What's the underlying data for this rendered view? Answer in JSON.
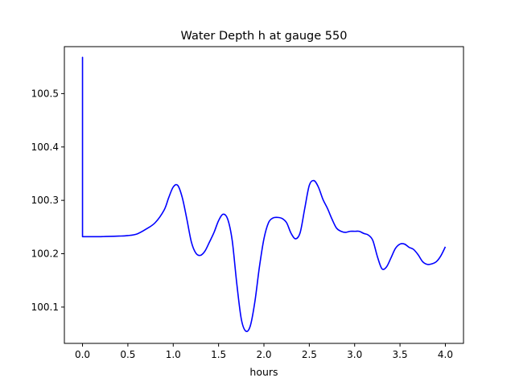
{
  "chart_data": {
    "type": "line",
    "title": "Water Depth h at gauge 550",
    "xlabel": "hours",
    "ylabel": "",
    "xlim": [
      -0.2,
      4.2
    ],
    "ylim": [
      100.032,
      100.588
    ],
    "xticks": [
      0.0,
      0.5,
      1.0,
      1.5,
      2.0,
      2.5,
      3.0,
      3.5,
      4.0
    ],
    "xtick_labels": [
      "0.0",
      "0.5",
      "1.0",
      "1.5",
      "2.0",
      "2.5",
      "3.0",
      "3.5",
      "4.0"
    ],
    "yticks": [
      100.1,
      100.2,
      100.3,
      100.4,
      100.5
    ],
    "ytick_labels": [
      "100.1",
      "100.2",
      "100.3",
      "100.4",
      "100.5"
    ],
    "grid": false,
    "legend": "none",
    "series": [
      {
        "color": "#0000ff",
        "x": [
          0.0,
          0.0,
          0.0,
          0.2,
          0.4,
          0.5,
          0.6,
          0.7,
          0.8,
          0.9,
          0.95,
          1.0,
          1.05,
          1.1,
          1.15,
          1.2,
          1.25,
          1.3,
          1.35,
          1.4,
          1.45,
          1.5,
          1.55,
          1.6,
          1.65,
          1.7,
          1.75,
          1.8,
          1.85,
          1.9,
          1.95,
          2.0,
          2.05,
          2.1,
          2.15,
          2.2,
          2.25,
          2.3,
          2.35,
          2.4,
          2.45,
          2.5,
          2.55,
          2.6,
          2.65,
          2.7,
          2.75,
          2.8,
          2.85,
          2.9,
          2.95,
          3.0,
          3.05,
          3.1,
          3.15,
          3.2,
          3.25,
          3.3,
          3.35,
          3.4,
          3.45,
          3.5,
          3.55,
          3.6,
          3.65,
          3.7,
          3.75,
          3.8,
          3.85,
          3.9,
          3.95,
          4.0
        ],
        "y": [
          100.232,
          100.568,
          100.232,
          100.232,
          100.233,
          100.234,
          100.237,
          100.246,
          100.258,
          100.282,
          100.305,
          100.325,
          100.328,
          100.305,
          100.265,
          100.222,
          100.201,
          100.197,
          100.205,
          100.222,
          100.24,
          100.262,
          100.274,
          100.265,
          100.225,
          100.145,
          100.078,
          100.055,
          100.065,
          100.11,
          100.175,
          100.228,
          100.258,
          100.267,
          100.268,
          100.266,
          100.258,
          100.238,
          100.228,
          100.24,
          100.285,
          100.328,
          100.337,
          100.325,
          100.302,
          100.285,
          100.265,
          100.248,
          100.242,
          100.24,
          100.242,
          100.242,
          100.242,
          100.238,
          100.235,
          100.225,
          100.195,
          100.172,
          100.175,
          100.192,
          100.21,
          100.218,
          100.218,
          100.212,
          100.208,
          100.198,
          100.185,
          100.18,
          100.181,
          100.185,
          100.196,
          100.213
        ]
      }
    ]
  }
}
